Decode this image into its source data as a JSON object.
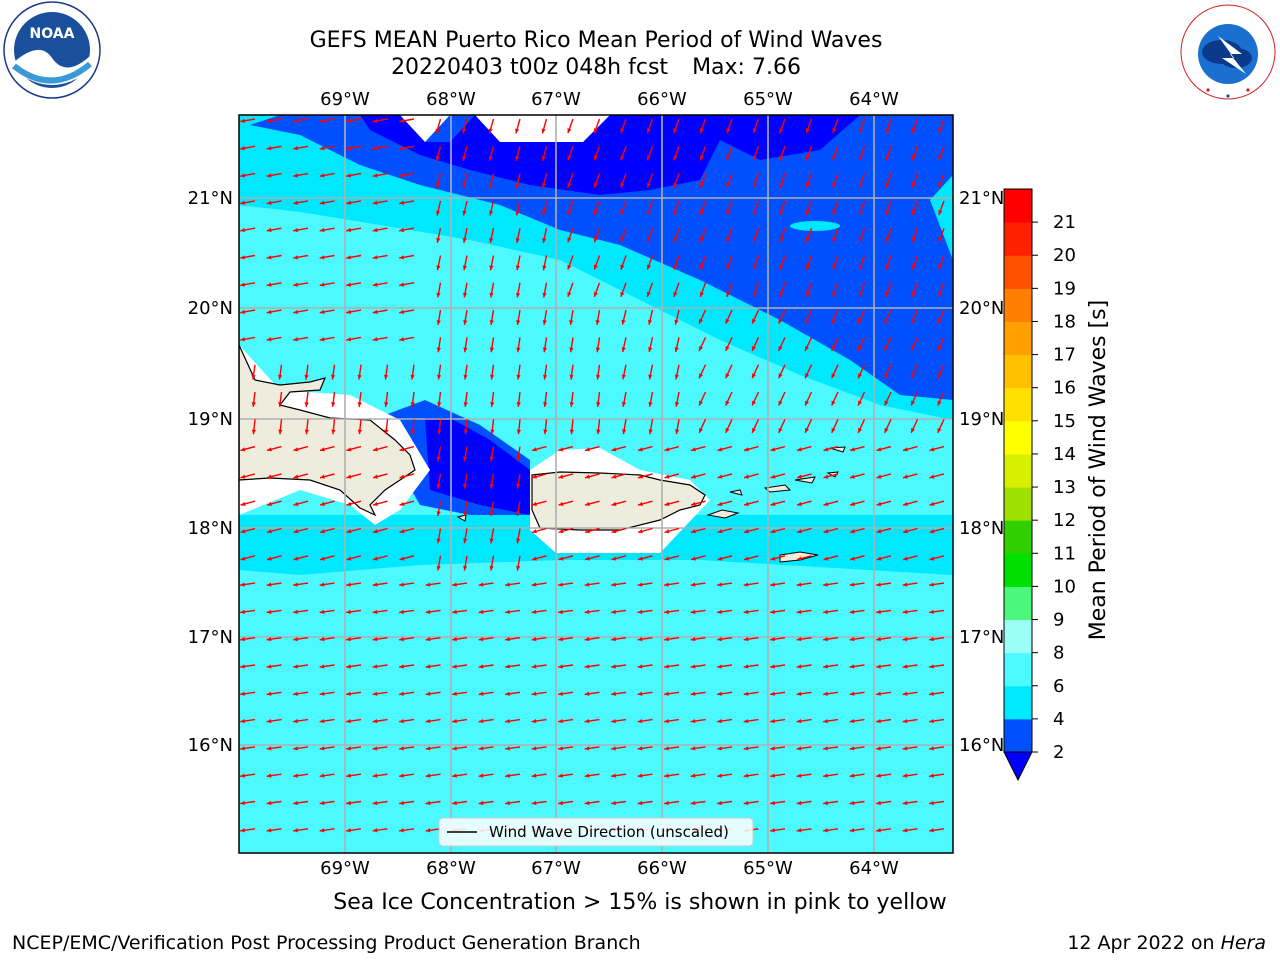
{
  "header": {
    "title_line1": "GEFS MEAN Puerto Rico Mean Period of Wind Waves",
    "title_line2_date": "20220403 t00z 048h fcst",
    "title_line2_max": "Max: 7.66"
  },
  "logos": {
    "left": "noaa-logo",
    "left_text": "NOAA",
    "left_ring_text": "NATIONAL OCEANIC AND ATMOSPHERIC ADMINISTRATION · U.S. DEPARTMENT OF COMMERCE",
    "right": "nws-logo",
    "right_ring_text": "NATIONAL WEATHER SERVICE"
  },
  "map": {
    "lon_labels": [
      "69°W",
      "68°W",
      "67°W",
      "66°W",
      "65°W",
      "64°W"
    ],
    "lat_labels": [
      "21°N",
      "20°N",
      "19°N",
      "18°N",
      "17°N",
      "16°N"
    ],
    "legend_label": "Wind Wave Direction (unscaled)",
    "arrow_color": "#ff0000",
    "land_color": "#eeecdc",
    "grid": true
  },
  "colorbar": {
    "label": "Mean Period of Wind Waves [s]",
    "ticks": [
      "2",
      "4",
      "6",
      "8",
      "9",
      "10",
      "11",
      "12",
      "13",
      "14",
      "15",
      "16",
      "17",
      "18",
      "19",
      "20",
      "21"
    ],
    "colors": [
      "#0050ff",
      "#00e8ff",
      "#4cf9ff",
      "#99fff7",
      "#4cf87c",
      "#00e000",
      "#30d000",
      "#a0e000",
      "#d8f000",
      "#ffff00",
      "#ffe000",
      "#ffc000",
      "#ffa000",
      "#ff8000",
      "#ff5000",
      "#ff2000",
      "#ff0000"
    ],
    "under_color": "#0000ff"
  },
  "footer": {
    "subtitle": "Sea Ice Concentration > 15% is shown in pink to yellow",
    "left": "NCEP/EMC/Verification Post Processing Product Generation Branch",
    "right_date": "12 Apr 2022 on",
    "right_host": "Hera"
  }
}
